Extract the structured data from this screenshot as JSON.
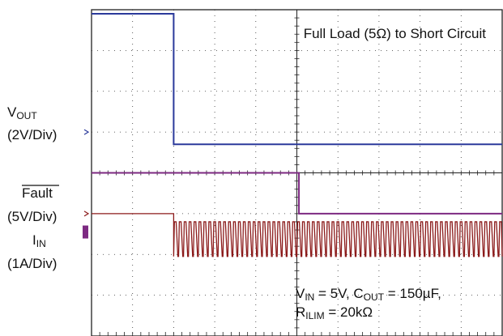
{
  "chart_data": {
    "type": "line",
    "title": "Full Load (5Ω) to Short Circuit",
    "grid": true,
    "grid_divisions": {
      "x": 10,
      "y": 8
    },
    "channels": [
      {
        "id": "vout",
        "name_main": "V",
        "name_sub": "OUT",
        "scale": "(2V/Div)",
        "color": "#2b3a9b",
        "pre_level_div": 2.9,
        "post_level_div": -0.3,
        "step_x_div": 2.0
      },
      {
        "id": "fault",
        "name_main": "Fault",
        "name_sub": "",
        "overline": true,
        "scale": "(5V/Div)",
        "color": "#7d2a82",
        "pre_level_div": 0.0,
        "post_level_div": -1.0,
        "step_x_div": 5.05
      },
      {
        "id": "iin",
        "name_main": "I",
        "name_sub": "IN",
        "scale": "(1A/Div)",
        "color": "#8b1a1a",
        "pre_level_div": 0.0,
        "pulse_x_start_div": 2.0,
        "pulse_period_div": 0.12,
        "pulse_high_div": -0.2,
        "pulse_low_div": -1.05
      }
    ],
    "annotation": {
      "line1_a": "V",
      "line1_a_sub": "IN",
      "line1_b": " = 5V, C",
      "line1_b_sub": "OUT",
      "line1_c": " = 150µF,",
      "line2_a": "R",
      "line2_a_sub": "ILIM",
      "line2_b": " = 20kΩ"
    }
  }
}
